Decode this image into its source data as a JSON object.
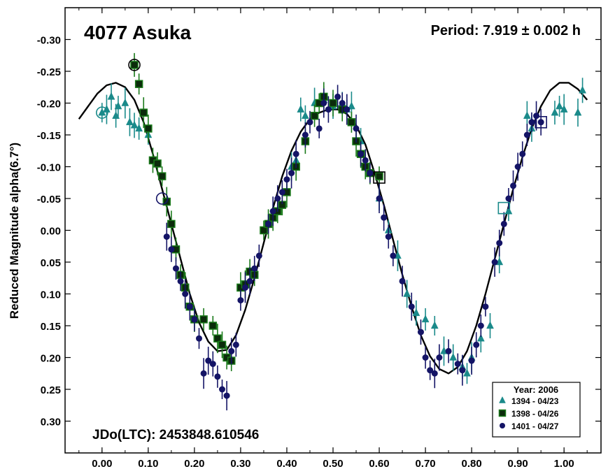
{
  "chart_data": {
    "type": "scatter",
    "title": "4077 Asuka",
    "period_label": "Period: 7.919 ± 0.002 h",
    "epoch_label": "JDo(LTC): 2453848.610546",
    "ylabel": "Reduced Magnitude alpha(6.7°)",
    "xlabel": "",
    "xlim": [
      -0.08,
      1.08
    ],
    "ylim": [
      -0.35,
      0.35
    ],
    "y_inverted": true,
    "x_ticks": [
      "0.00",
      "0.10",
      "0.20",
      "0.30",
      "0.40",
      "0.50",
      "0.60",
      "0.70",
      "0.80",
      "0.90",
      "1.00"
    ],
    "x_tick_values": [
      0.0,
      0.1,
      0.2,
      0.3,
      0.4,
      0.5,
      0.6,
      0.7,
      0.8,
      0.9,
      1.0
    ],
    "y_ticks": [
      "-0.30",
      "-0.25",
      "-0.20",
      "-0.15",
      "-0.10",
      "-0.05",
      "0.00",
      "0.05",
      "0.10",
      "0.15",
      "0.20",
      "0.25",
      "0.30"
    ],
    "y_tick_values": [
      -0.3,
      -0.25,
      -0.2,
      -0.15,
      -0.1,
      -0.05,
      0.0,
      0.05,
      0.1,
      0.15,
      0.2,
      0.25,
      0.3
    ],
    "legend": {
      "title": "Year: 2006",
      "placement": "bottom-right"
    },
    "fit_curve": {
      "name": "Fourier fit",
      "color": "#000000",
      "x": [
        -0.05,
        -0.03,
        -0.01,
        0.01,
        0.03,
        0.05,
        0.07,
        0.09,
        0.11,
        0.13,
        0.15,
        0.17,
        0.19,
        0.21,
        0.23,
        0.25,
        0.27,
        0.29,
        0.31,
        0.33,
        0.35,
        0.37,
        0.39,
        0.41,
        0.43,
        0.45,
        0.47,
        0.49,
        0.51,
        0.53,
        0.55,
        0.57,
        0.59,
        0.61,
        0.63,
        0.65,
        0.67,
        0.69,
        0.71,
        0.73,
        0.75,
        0.77,
        0.79,
        0.81,
        0.83,
        0.85,
        0.87,
        0.89,
        0.91,
        0.93,
        0.95,
        0.97,
        0.99,
        1.01,
        1.03,
        1.05
      ],
      "y": [
        -0.175,
        -0.195,
        -0.215,
        -0.228,
        -0.232,
        -0.225,
        -0.205,
        -0.17,
        -0.12,
        -0.065,
        -0.01,
        0.045,
        0.1,
        0.145,
        0.175,
        0.19,
        0.188,
        0.165,
        0.125,
        0.075,
        0.02,
        -0.035,
        -0.085,
        -0.125,
        -0.155,
        -0.175,
        -0.185,
        -0.19,
        -0.19,
        -0.183,
        -0.165,
        -0.135,
        -0.09,
        -0.04,
        0.015,
        0.07,
        0.12,
        0.165,
        0.198,
        0.218,
        0.225,
        0.215,
        0.19,
        0.15,
        0.1,
        0.045,
        -0.01,
        -0.065,
        -0.115,
        -0.16,
        -0.195,
        -0.22,
        -0.232,
        -0.232,
        -0.222,
        -0.205
      ]
    },
    "series": [
      {
        "name": "1394 - 04/23",
        "marker": "triangle",
        "color": "#1a8a8a",
        "x": [
          0.0,
          0.01,
          0.02,
          0.03,
          0.035,
          0.05,
          0.06,
          0.07,
          0.08,
          0.1,
          0.41,
          0.42,
          0.43,
          0.44,
          0.46,
          0.48,
          0.5,
          0.52,
          0.53,
          0.54,
          0.56,
          0.6,
          0.62,
          0.64,
          0.66,
          0.68,
          0.7,
          0.72,
          0.74,
          0.76,
          0.78,
          0.79,
          0.8,
          0.82,
          0.84,
          0.86,
          0.88,
          0.92,
          0.93,
          0.98,
          0.99,
          1.0,
          1.03,
          1.04
        ],
        "y": [
          -0.185,
          -0.19,
          -0.21,
          -0.18,
          -0.195,
          -0.2,
          -0.17,
          -0.165,
          -0.16,
          -0.15,
          -0.1,
          -0.11,
          -0.19,
          -0.18,
          -0.2,
          -0.205,
          -0.195,
          -0.2,
          -0.19,
          -0.195,
          -0.14,
          -0.05,
          0.0,
          0.04,
          0.1,
          0.13,
          0.14,
          0.15,
          0.19,
          0.2,
          0.215,
          0.225,
          0.2,
          0.17,
          0.15,
          0.05,
          -0.03,
          -0.18,
          -0.16,
          -0.185,
          -0.195,
          -0.19,
          -0.185,
          -0.22
        ]
      },
      {
        "name": "1398 - 04/26",
        "marker": "square",
        "color": "#1a7a1a",
        "x": [
          0.07,
          0.08,
          0.09,
          0.1,
          0.11,
          0.12,
          0.13,
          0.14,
          0.15,
          0.16,
          0.17,
          0.18,
          0.19,
          0.2,
          0.22,
          0.24,
          0.25,
          0.26,
          0.27,
          0.28,
          0.3,
          0.31,
          0.32,
          0.33,
          0.35,
          0.36,
          0.37,
          0.38,
          0.39,
          0.4,
          0.42,
          0.44,
          0.46,
          0.47,
          0.48,
          0.5,
          0.52,
          0.54,
          0.55,
          0.56,
          0.57,
          0.58,
          0.6
        ],
        "y": [
          -0.26,
          -0.23,
          -0.185,
          -0.16,
          -0.11,
          -0.105,
          -0.085,
          -0.045,
          -0.01,
          0.03,
          0.07,
          0.09,
          0.12,
          0.14,
          0.14,
          0.15,
          0.17,
          0.18,
          0.2,
          0.205,
          0.09,
          0.085,
          0.065,
          0.07,
          0.0,
          -0.01,
          -0.02,
          -0.03,
          -0.04,
          -0.06,
          -0.1,
          -0.14,
          -0.18,
          -0.2,
          -0.21,
          -0.2,
          -0.19,
          -0.17,
          -0.14,
          -0.12,
          -0.1,
          -0.09,
          -0.085
        ]
      },
      {
        "name": "1401 - 04/27",
        "marker": "circle",
        "color": "#141466",
        "x": [
          0.14,
          0.15,
          0.16,
          0.17,
          0.18,
          0.19,
          0.2,
          0.21,
          0.22,
          0.23,
          0.24,
          0.25,
          0.26,
          0.27,
          0.28,
          0.29,
          0.3,
          0.31,
          0.32,
          0.33,
          0.34,
          0.36,
          0.37,
          0.38,
          0.39,
          0.4,
          0.41,
          0.42,
          0.44,
          0.45,
          0.47,
          0.48,
          0.49,
          0.51,
          0.52,
          0.53,
          0.55,
          0.56,
          0.57,
          0.58,
          0.6,
          0.61,
          0.62,
          0.63,
          0.65,
          0.67,
          0.69,
          0.7,
          0.71,
          0.72,
          0.73,
          0.75,
          0.77,
          0.78,
          0.8,
          0.81,
          0.82,
          0.83,
          0.85,
          0.86,
          0.87,
          0.88,
          0.89,
          0.9,
          0.91,
          0.92,
          0.93,
          0.94,
          0.95
        ],
        "y": [
          0.01,
          0.03,
          0.06,
          0.08,
          0.1,
          0.12,
          0.14,
          0.17,
          0.225,
          0.205,
          0.21,
          0.23,
          0.25,
          0.26,
          0.19,
          0.18,
          0.11,
          0.09,
          0.08,
          0.06,
          0.04,
          -0.01,
          -0.03,
          -0.05,
          -0.06,
          -0.08,
          -0.09,
          -0.12,
          -0.15,
          -0.17,
          -0.16,
          -0.2,
          -0.19,
          -0.21,
          -0.2,
          -0.19,
          -0.16,
          -0.12,
          -0.11,
          -0.09,
          -0.05,
          -0.02,
          0.01,
          0.04,
          0.08,
          0.12,
          0.16,
          0.2,
          0.22,
          0.225,
          0.2,
          0.19,
          0.21,
          0.22,
          0.205,
          0.18,
          0.15,
          0.12,
          0.05,
          0.02,
          -0.01,
          -0.05,
          -0.07,
          -0.1,
          -0.12,
          -0.15,
          -0.17,
          -0.18,
          -0.17
        ]
      }
    ],
    "highlights": [
      {
        "marker": "open-circle",
        "color": "#1a8a8a",
        "x": 0.0,
        "y": -0.185
      },
      {
        "marker": "open-circle",
        "color": "#000000",
        "x": 0.07,
        "y": -0.26
      },
      {
        "marker": "open-circle",
        "color": "#141466",
        "x": 0.13,
        "y": -0.05
      },
      {
        "marker": "open-square",
        "color": "#000000",
        "x": 0.6,
        "y": -0.083
      },
      {
        "marker": "open-square",
        "color": "#1a8a8a",
        "x": 0.87,
        "y": -0.035
      },
      {
        "marker": "open-square",
        "color": "#141466",
        "x": 0.95,
        "y": -0.17
      }
    ]
  }
}
